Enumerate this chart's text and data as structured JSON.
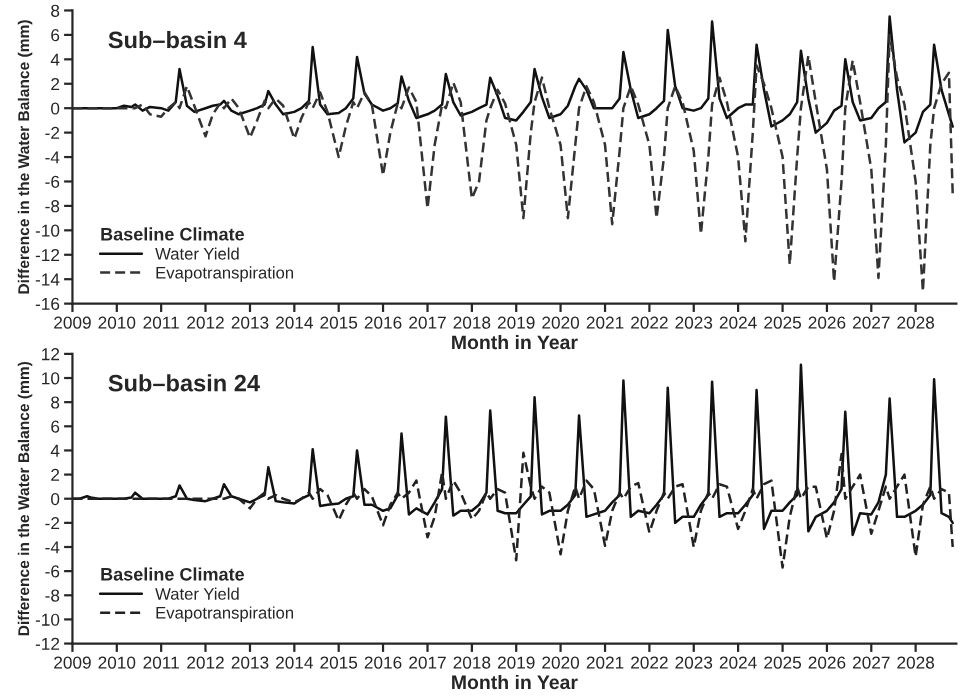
{
  "chart_data": [
    {
      "type": "line",
      "title": "Sub–basin 4",
      "xlabel": "Month in Year",
      "ylabel": "Difference in the Water Balance (mm)",
      "legend_title": "Baseline Climate",
      "legend": "bottom left",
      "grid": false,
      "x": [
        "2009-01",
        "2009-03",
        "2009-05",
        "2009-06",
        "2009-08",
        "2009-10",
        "2010-01",
        "2010-03",
        "2010-05",
        "2010-06",
        "2010-08",
        "2010-10",
        "2011-01",
        "2011-03",
        "2011-05",
        "2011-06",
        "2011-08",
        "2011-10",
        "2012-01",
        "2012-03",
        "2012-05",
        "2012-06",
        "2012-08",
        "2012-10",
        "2013-01",
        "2013-03",
        "2013-05",
        "2013-06",
        "2013-08",
        "2013-10",
        "2014-01",
        "2014-03",
        "2014-05",
        "2014-06",
        "2014-08",
        "2014-10",
        "2015-01",
        "2015-03",
        "2015-05",
        "2015-06",
        "2015-08",
        "2015-10",
        "2016-01",
        "2016-03",
        "2016-05",
        "2016-06",
        "2016-08",
        "2016-10",
        "2017-01",
        "2017-03",
        "2017-05",
        "2017-06",
        "2017-08",
        "2017-10",
        "2018-01",
        "2018-03",
        "2018-05",
        "2018-06",
        "2018-08",
        "2018-10",
        "2019-01",
        "2019-03",
        "2019-05",
        "2019-06",
        "2019-08",
        "2019-10",
        "2020-01",
        "2020-03",
        "2020-05",
        "2020-06",
        "2020-08",
        "2020-10",
        "2021-01",
        "2021-03",
        "2021-05",
        "2021-06",
        "2021-08",
        "2021-10",
        "2022-01",
        "2022-03",
        "2022-05",
        "2022-06",
        "2022-08",
        "2022-10",
        "2023-01",
        "2023-03",
        "2023-05",
        "2023-06",
        "2023-08",
        "2023-10",
        "2024-01",
        "2024-03",
        "2024-05",
        "2024-06",
        "2024-08",
        "2024-10",
        "2025-01",
        "2025-03",
        "2025-05",
        "2025-06",
        "2025-08",
        "2025-10",
        "2026-01",
        "2026-03",
        "2026-05",
        "2026-06",
        "2026-08",
        "2026-10",
        "2027-01",
        "2027-03",
        "2027-05",
        "2027-06",
        "2027-08",
        "2027-10",
        "2028-01",
        "2028-03",
        "2028-05",
        "2028-06",
        "2028-08",
        "2028-10",
        "2028-11"
      ],
      "series": [
        {
          "name": "Water Yield",
          "color": "#111111",
          "line_style": "solid",
          "values": [
            0,
            0,
            0,
            0,
            0,
            0,
            0,
            0.2,
            0.1,
            0.3,
            -0.2,
            0.1,
            0,
            -0.2,
            0.5,
            3.2,
            0.2,
            -0.3,
            0,
            0.2,
            0.3,
            0.6,
            -0.2,
            -0.5,
            -0.2,
            0,
            0.3,
            1.4,
            0.3,
            -0.5,
            -0.3,
            0,
            0.6,
            5.0,
            0.3,
            -0.5,
            -0.4,
            0,
            0.8,
            4.2,
            1.2,
            0.3,
            -0.2,
            0,
            0.4,
            2.6,
            0.6,
            -0.8,
            -0.5,
            -0.2,
            0.3,
            2.8,
            0.5,
            -0.6,
            -0.3,
            0,
            0.3,
            2.5,
            1.0,
            -0.8,
            -1.0,
            -0.3,
            0.5,
            3.2,
            0.9,
            -0.8,
            -0.5,
            0.2,
            1.8,
            2.4,
            1.5,
            0,
            0,
            0,
            0.8,
            4.6,
            1.5,
            -0.8,
            -0.5,
            0,
            0.6,
            6.4,
            1.8,
            0,
            -0.2,
            0,
            0.8,
            7.1,
            0.8,
            -0.8,
            0,
            0.3,
            0.3,
            5.2,
            1.5,
            -1.5,
            -1,
            -0.5,
            0.5,
            4.7,
            0.8,
            -2.0,
            -1.2,
            -0.2,
            0.2,
            4.0,
            0.5,
            -1.0,
            -0.8,
            0,
            0.5,
            7.5,
            1.5,
            -2.8,
            -2.0,
            -0.3,
            0.3,
            5.2,
            1.5,
            -0.5,
            -1.5
          ]
        },
        {
          "name": "Evapotranspiration",
          "color": "#333333",
          "line_style": "dashed",
          "values": [
            0,
            0,
            0,
            0,
            0,
            0,
            0,
            0,
            0,
            0,
            0.3,
            -0.5,
            -0.7,
            0,
            0.5,
            0,
            1.8,
            0.2,
            -2.3,
            -0.5,
            0.4,
            0,
            0.8,
            0,
            -2.4,
            -1.0,
            0.6,
            0,
            0.8,
            0.2,
            -2.5,
            -0.8,
            0.5,
            0,
            1.3,
            -0.3,
            -4.0,
            -1.5,
            0.5,
            0,
            1.3,
            0.3,
            -5.5,
            -2.0,
            0.4,
            0,
            1.7,
            0.5,
            -8.2,
            -3.0,
            0.3,
            0,
            2.1,
            0.5,
            -7.4,
            -6.0,
            -1.0,
            0,
            1.5,
            0.4,
            -3,
            -9.0,
            -2.0,
            0.5,
            2.5,
            0,
            -3,
            -9.0,
            -3.0,
            0,
            1.8,
            0.5,
            -3,
            -9.5,
            -3.5,
            0,
            1.8,
            0.3,
            -3,
            -9.0,
            -4,
            0,
            1.8,
            0.5,
            -3.5,
            -10.3,
            -4,
            0.3,
            2.5,
            0.5,
            -4,
            -10.9,
            -2,
            3.5,
            2.0,
            0,
            -4,
            -12.8,
            -4,
            0,
            4.3,
            0.5,
            -5,
            -14.2,
            -6,
            0,
            3.9,
            0.5,
            -5,
            -13.9,
            -3,
            6.0,
            2.5,
            0.3,
            -6,
            -15.0,
            -3,
            0,
            2.0,
            2.9,
            -7.0
          ]
        }
      ],
      "xlim": [
        "2009-01",
        "2028-12"
      ],
      "ylim": [
        -16,
        8
      ],
      "yticks": [
        -16,
        -14,
        -12,
        -10,
        -8,
        -6,
        -4,
        -2,
        0,
        2,
        4,
        6,
        8
      ],
      "xticks": [
        {
          "value": "2009-01",
          "label": "2009"
        },
        {
          "value": "2010-01",
          "label": "2010"
        },
        {
          "value": "2011-01",
          "label": "2011"
        },
        {
          "value": "2012-01",
          "label": "2012"
        },
        {
          "value": "2013-01",
          "label": "2013"
        },
        {
          "value": "2014-01",
          "label": "2014"
        },
        {
          "value": "2015-01",
          "label": "2015"
        },
        {
          "value": "2016-01",
          "label": "2016"
        },
        {
          "value": "2017-01",
          "label": "2017"
        },
        {
          "value": "2018-01",
          "label": "2018"
        },
        {
          "value": "2019-01",
          "label": "2019"
        },
        {
          "value": "2020-01",
          "label": "2020"
        },
        {
          "value": "2021-01",
          "label": "2021"
        },
        {
          "value": "2022-01",
          "label": "2022"
        },
        {
          "value": "2023-01",
          "label": "2023"
        },
        {
          "value": "2024-01",
          "label": "2024"
        },
        {
          "value": "2025-01",
          "label": "2025"
        },
        {
          "value": "2026-01",
          "label": "2026"
        },
        {
          "value": "2027-01",
          "label": "2027"
        },
        {
          "value": "2028-01",
          "label": "2028"
        }
      ]
    },
    {
      "type": "line",
      "title": "Sub–basin 24",
      "xlabel": "Month in Year",
      "ylabel": "Difference in the Water Balance (mm)",
      "legend_title": "Baseline Climate",
      "legend": "bottom left",
      "grid": false,
      "x": [
        "2009-01",
        "2009-03",
        "2009-05",
        "2009-06",
        "2009-08",
        "2009-10",
        "2010-01",
        "2010-03",
        "2010-05",
        "2010-06",
        "2010-08",
        "2010-10",
        "2011-01",
        "2011-03",
        "2011-05",
        "2011-06",
        "2011-08",
        "2011-10",
        "2012-01",
        "2012-03",
        "2012-05",
        "2012-06",
        "2012-08",
        "2012-10",
        "2013-01",
        "2013-03",
        "2013-05",
        "2013-06",
        "2013-08",
        "2013-10",
        "2014-01",
        "2014-03",
        "2014-05",
        "2014-06",
        "2014-08",
        "2014-10",
        "2015-01",
        "2015-03",
        "2015-05",
        "2015-06",
        "2015-08",
        "2015-10",
        "2016-01",
        "2016-03",
        "2016-05",
        "2016-06",
        "2016-08",
        "2016-10",
        "2017-01",
        "2017-03",
        "2017-05",
        "2017-06",
        "2017-08",
        "2017-10",
        "2018-01",
        "2018-03",
        "2018-05",
        "2018-06",
        "2018-08",
        "2018-10",
        "2019-01",
        "2019-03",
        "2019-05",
        "2019-06",
        "2019-08",
        "2019-10",
        "2020-01",
        "2020-03",
        "2020-05",
        "2020-06",
        "2020-08",
        "2020-10",
        "2021-01",
        "2021-03",
        "2021-05",
        "2021-06",
        "2021-08",
        "2021-10",
        "2022-01",
        "2022-03",
        "2022-05",
        "2022-06",
        "2022-08",
        "2022-10",
        "2023-01",
        "2023-03",
        "2023-05",
        "2023-06",
        "2023-08",
        "2023-10",
        "2024-01",
        "2024-03",
        "2024-05",
        "2024-06",
        "2024-08",
        "2024-10",
        "2025-01",
        "2025-03",
        "2025-05",
        "2025-06",
        "2025-08",
        "2025-10",
        "2026-01",
        "2026-03",
        "2026-05",
        "2026-06",
        "2026-08",
        "2026-10",
        "2027-01",
        "2027-03",
        "2027-05",
        "2027-06",
        "2027-08",
        "2027-10",
        "2028-01",
        "2028-03",
        "2028-05",
        "2028-06",
        "2028-08",
        "2028-10",
        "2028-11"
      ],
      "series": [
        {
          "name": "Water Yield",
          "color": "#111111",
          "line_style": "solid",
          "values": [
            0,
            0,
            0.2,
            0.1,
            0,
            0,
            0,
            0,
            0.1,
            0.5,
            0,
            0,
            0,
            0,
            0.2,
            1.1,
            0,
            -0.1,
            -0.2,
            0,
            0.2,
            1.2,
            0.2,
            0,
            -0.3,
            0,
            0.3,
            2.6,
            -0.2,
            -0.3,
            -0.4,
            0,
            0.3,
            4.1,
            -0.6,
            -0.5,
            -0.4,
            0,
            0.2,
            4.0,
            -0.5,
            -0.5,
            -1.0,
            -0.8,
            0.3,
            5.4,
            -1.3,
            -0.8,
            -1.3,
            -0.3,
            0.8,
            6.8,
            -1.4,
            -1.0,
            -1.0,
            -0.5,
            0.5,
            7.3,
            -1.0,
            -1.2,
            -1.2,
            -0.5,
            0.2,
            8.4,
            -1.3,
            -1.0,
            -1.0,
            -0.5,
            0.3,
            6.9,
            -1.5,
            -1.3,
            -1.0,
            -0.3,
            0.3,
            9.8,
            -1.5,
            -1.0,
            -1.2,
            -0.5,
            0.3,
            9.2,
            -2.0,
            -1.5,
            -1.5,
            -0.5,
            0.3,
            9.7,
            -1.5,
            -1.2,
            -1.2,
            -0.5,
            0.3,
            9.0,
            -2.5,
            -1.0,
            -1.0,
            -0.3,
            0.3,
            11.1,
            -2.7,
            -1.5,
            -1.0,
            -0.3,
            0.8,
            7.2,
            -3.0,
            -1.2,
            -1.3,
            -0.3,
            2.0,
            8.3,
            -1.5,
            -1.5,
            -1.0,
            -0.5,
            0.3,
            9.9,
            -1.2,
            -1.5,
            -2.0
          ]
        },
        {
          "name": "Evapotranspiration",
          "color": "#222222",
          "line_style": "dashed",
          "values": [
            0,
            0,
            0,
            0,
            0,
            0,
            0,
            0,
            0,
            0,
            0,
            0,
            0,
            0,
            0,
            0,
            0,
            0,
            0,
            0,
            0,
            0,
            0.2,
            0,
            -0.8,
            0,
            0.5,
            0,
            0.3,
            0,
            -0.3,
            0,
            0.5,
            0,
            0.8,
            0.3,
            -1.8,
            -0.5,
            0.5,
            0,
            0.8,
            0.2,
            -2.2,
            -0.5,
            0.5,
            0,
            0.5,
            1.5,
            -3.2,
            -1.5,
            2.2,
            0,
            1.5,
            0.5,
            -1.7,
            -1.0,
            0.5,
            0,
            0.8,
            0.5,
            -5.1,
            3.8,
            1.0,
            0,
            1.0,
            0.5,
            -4.6,
            -1.0,
            1.0,
            0,
            1.5,
            0.8,
            -3.9,
            -1.0,
            0.5,
            0,
            1.0,
            1.3,
            -2.8,
            -1.0,
            0.5,
            0,
            1.0,
            1.2,
            -4.0,
            -1.0,
            0.5,
            0,
            1.2,
            1.0,
            -2.5,
            -1.0,
            0.8,
            0,
            1.2,
            1.5,
            -5.7,
            -1.5,
            1.0,
            0,
            1.0,
            1.0,
            -3.3,
            -1.0,
            3.7,
            0,
            1.0,
            2.0,
            -2.9,
            -1.0,
            1.0,
            0,
            1.0,
            2.0,
            -4.8,
            -0.5,
            1.0,
            0,
            0.8,
            0.5,
            -4.0
          ]
        }
      ],
      "xlim": [
        "2009-01",
        "2028-12"
      ],
      "ylim": [
        -12,
        12
      ],
      "yticks": [
        -12,
        -10,
        -8,
        -6,
        -4,
        -2,
        0,
        2,
        4,
        6,
        8,
        10,
        12
      ],
      "xticks": [
        {
          "value": "2009-01",
          "label": "2009"
        },
        {
          "value": "2010-01",
          "label": "2010"
        },
        {
          "value": "2011-01",
          "label": "2011"
        },
        {
          "value": "2012-01",
          "label": "2012"
        },
        {
          "value": "2013-01",
          "label": "2013"
        },
        {
          "value": "2014-01",
          "label": "2014"
        },
        {
          "value": "2015-01",
          "label": "2015"
        },
        {
          "value": "2016-01",
          "label": "2016"
        },
        {
          "value": "2017-01",
          "label": "2017"
        },
        {
          "value": "2018-01",
          "label": "2018"
        },
        {
          "value": "2019-01",
          "label": "2019"
        },
        {
          "value": "2020-01",
          "label": "2020"
        },
        {
          "value": "2021-01",
          "label": "2021"
        },
        {
          "value": "2022-01",
          "label": "2022"
        },
        {
          "value": "2023-01",
          "label": "2023"
        },
        {
          "value": "2024-01",
          "label": "2024"
        },
        {
          "value": "2025-01",
          "label": "2025"
        },
        {
          "value": "2026-01",
          "label": "2026"
        },
        {
          "value": "2027-01",
          "label": "2027"
        },
        {
          "value": "2028-01",
          "label": "2028"
        }
      ]
    }
  ]
}
